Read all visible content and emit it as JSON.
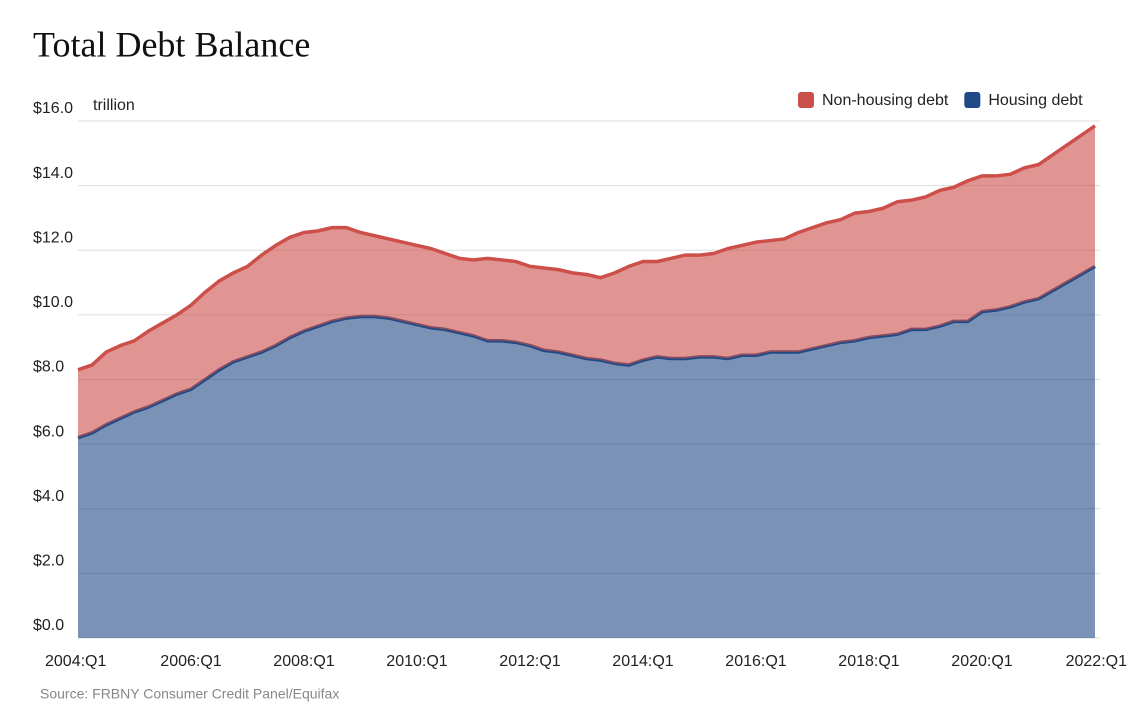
{
  "chart_data": {
    "type": "stacked-area",
    "title": "Total Debt Balance",
    "y_unit": "trillion",
    "source": "Source: FRBNY Consumer Credit Panel/Equifax",
    "categories": [
      "2004:Q1",
      null,
      null,
      null,
      null,
      null,
      null,
      null,
      "2006:Q1",
      null,
      null,
      null,
      null,
      null,
      null,
      null,
      "2008:Q1",
      null,
      null,
      null,
      null,
      null,
      null,
      null,
      "2010:Q1",
      null,
      null,
      null,
      null,
      null,
      null,
      null,
      "2012:Q1",
      null,
      null,
      null,
      null,
      null,
      null,
      null,
      "2014:Q1",
      null,
      null,
      null,
      null,
      null,
      null,
      null,
      "2016:Q1",
      null,
      null,
      null,
      null,
      null,
      null,
      null,
      "2018:Q1",
      null,
      null,
      null,
      null,
      null,
      null,
      null,
      "2020:Q1",
      null,
      null,
      null,
      null,
      null,
      null,
      null,
      "2022:Q1"
    ],
    "series": [
      {
        "name": "Non-housing debt",
        "color": "#cc4f4a",
        "values": [
          2.1,
          2.1,
          2.25,
          2.25,
          2.2,
          2.35,
          2.4,
          2.45,
          2.6,
          2.7,
          2.75,
          2.75,
          2.8,
          3.0,
          3.1,
          3.1,
          3.05,
          2.95,
          2.9,
          2.8,
          2.6,
          2.5,
          2.45,
          2.45,
          2.45,
          2.45,
          2.35,
          2.3,
          2.35,
          2.55,
          2.5,
          2.5,
          2.45,
          2.55,
          2.55,
          2.55,
          2.6,
          2.55,
          2.8,
          3.05,
          3.05,
          2.95,
          3.1,
          3.2,
          3.15,
          3.2,
          3.4,
          3.4,
          3.5,
          3.45,
          3.5,
          3.7,
          3.75,
          3.8,
          3.8,
          3.95,
          3.9,
          3.95,
          4.1,
          4.0,
          4.1,
          4.2,
          4.15,
          4.35,
          4.2,
          4.15,
          4.1,
          4.15,
          4.15,
          4.2,
          4.25,
          4.3,
          4.35
        ]
      },
      {
        "name": "Housing debt",
        "color": "#1f4a85",
        "values": [
          6.2,
          6.35,
          6.6,
          6.8,
          7.0,
          7.15,
          7.35,
          7.55,
          7.7,
          8.0,
          8.3,
          8.55,
          8.7,
          8.85,
          9.05,
          9.3,
          9.5,
          9.65,
          9.8,
          9.9,
          9.95,
          9.95,
          9.9,
          9.8,
          9.7,
          9.6,
          9.55,
          9.45,
          9.35,
          9.2,
          9.2,
          9.15,
          9.05,
          8.9,
          8.85,
          8.75,
          8.65,
          8.6,
          8.5,
          8.45,
          8.6,
          8.7,
          8.65,
          8.65,
          8.7,
          8.7,
          8.65,
          8.75,
          8.75,
          8.85,
          8.85,
          8.85,
          8.95,
          9.05,
          9.15,
          9.2,
          9.3,
          9.35,
          9.4,
          9.55,
          9.55,
          9.65,
          9.8,
          9.8,
          10.1,
          10.15,
          10.25,
          10.4,
          10.5,
          10.75,
          11.0,
          11.25,
          11.5
        ]
      }
    ],
    "ylim": [
      0,
      16
    ],
    "yticks": [
      {
        "value": 0,
        "label": "$0.0"
      },
      {
        "value": 2,
        "label": "$2.0"
      },
      {
        "value": 4,
        "label": "$4.0"
      },
      {
        "value": 6,
        "label": "$6.0"
      },
      {
        "value": 8,
        "label": "$8.0"
      },
      {
        "value": 10,
        "label": "$10.0"
      },
      {
        "value": 12,
        "label": "$12.0"
      },
      {
        "value": 14,
        "label": "$14.0"
      },
      {
        "value": 16,
        "label": "$16.0"
      }
    ],
    "grid": true,
    "legend": "top-right"
  }
}
